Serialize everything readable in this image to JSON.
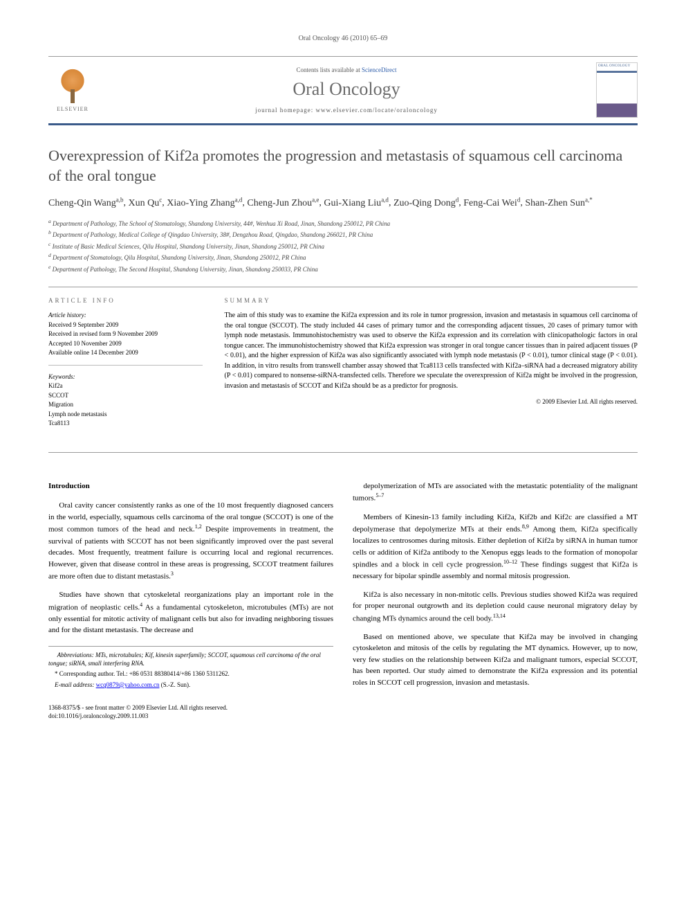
{
  "runningHead": "Oral Oncology 46 (2010) 65–69",
  "masthead": {
    "publisher": "ELSEVIER",
    "contentsPrefix": "Contents lists available at ",
    "contentsLink": "ScienceDirect",
    "journalName": "Oral Oncology",
    "homepageLabel": "journal homepage: www.elsevier.com/locate/oraloncology",
    "coverLabel": "ORAL ONCOLOGY"
  },
  "title": "Overexpression of Kif2a promotes the progression and metastasis of squamous cell carcinoma of the oral tongue",
  "authors": [
    {
      "name": "Cheng-Qin Wang",
      "aff": "a,b"
    },
    {
      "name": "Xun Qu",
      "aff": "c"
    },
    {
      "name": "Xiao-Ying Zhang",
      "aff": "a,d"
    },
    {
      "name": "Cheng-Jun Zhou",
      "aff": "a,e"
    },
    {
      "name": "Gui-Xiang Liu",
      "aff": "a,d"
    },
    {
      "name": "Zuo-Qing Dong",
      "aff": "d"
    },
    {
      "name": "Feng-Cai Wei",
      "aff": "d"
    },
    {
      "name": "Shan-Zhen Sun",
      "aff": "a,*"
    }
  ],
  "affiliations": [
    {
      "key": "a",
      "text": "Department of Pathology, The School of Stomatology, Shandong University, 44#, Wenhua Xi Road, Jinan, Shandong 250012, PR China"
    },
    {
      "key": "b",
      "text": "Department of Pathology, Medical College of Qingdao University, 38#, Dengzhou Road, Qingdao, Shandong 266021, PR China"
    },
    {
      "key": "c",
      "text": "Institute of Basic Medical Sciences, Qilu Hospital, Shandong University, Jinan, Shandong 250012, PR China"
    },
    {
      "key": "d",
      "text": "Department of Stomatology, Qilu Hospital, Shandong University, Jinan, Shandong 250012, PR China"
    },
    {
      "key": "e",
      "text": "Department of Pathology, The Second Hospital, Shandong University, Jinan, Shandong 250033, PR China"
    }
  ],
  "articleInfo": {
    "label": "ARTICLE INFO",
    "historyHead": "Article history:",
    "history": [
      "Received 9 September 2009",
      "Received in revised form 9 November 2009",
      "Accepted 10 November 2009",
      "Available online 14 December 2009"
    ],
    "keywordsHead": "Keywords:",
    "keywords": [
      "Kif2a",
      "SCCOT",
      "Migration",
      "Lymph node metastasis",
      "Tca8113"
    ]
  },
  "summary": {
    "label": "SUMMARY",
    "text": "The aim of this study was to examine the Kif2a expression and its role in tumor progression, invasion and metastasis in squamous cell carcinoma of the oral tongue (SCCOT). The study included 44 cases of primary tumor and the corresponding adjacent tissues, 20 cases of primary tumor with lymph node metastasis. Immunohistochemistry was used to observe the Kif2a expression and its correlation with clinicopathologic factors in oral tongue cancer. The immunohistochemistry showed that Kif2a expression was stronger in oral tongue cancer tissues than in paired adjacent tissues (P < 0.01), and the higher expression of Kif2a was also significantly associated with lymph node metastasis (P < 0.01), tumor clinical stage (P < 0.01). In addition, in vitro results from transwell chamber assay showed that Tca8113 cells transfected with Kif2a–siRNA had a decreased migratory ability (P < 0.01) compared to nonsense-siRNA-transfected cells. Therefore we speculate the overexpression of Kif2a might be involved in the progression, invasion and metastasis of SCCOT and Kif2a should be as a predictor for prognosis.",
    "copyright": "© 2009 Elsevier Ltd. All rights reserved."
  },
  "body": {
    "introHeading": "Introduction",
    "leftParas": [
      "Oral cavity cancer consistently ranks as one of the 10 most frequently diagnosed cancers in the world, especially, squamous cells carcinoma of the oral tongue (SCCOT) is one of the most common tumors of the head and neck.1,2 Despite improvements in treatment, the survival of patients with SCCOT has not been significantly improved over the past several decades. Most frequently, treatment failure is occurring local and regional recurrences. However, given that disease control in these areas is progressing, SCCOT treatment failures are more often due to distant metastasis.3",
      "Studies have shown that cytoskeletal reorganizations play an important role in the migration of neoplastic cells.4 As a fundamental cytoskeleton, microtubules (MTs) are not only essential for mitotic activity of malignant cells but also for invading neighboring tissues and for the distant metastasis. The decrease and"
    ],
    "rightParas": [
      "depolymerization of MTs are associated with the metastatic potentiality of the malignant tumors.5–7",
      "Members of Kinesin-13 family including Kif2a, Kif2b and Kif2c are classified a MT depolymerase that depolymerize MTs at their ends.8,9 Among them, Kif2a specifically localizes to centrosomes during mitosis. Either depletion of Kif2a by siRNA in human tumor cells or addition of Kif2a antibody to the Xenopus eggs leads to the formation of monopolar spindles and a block in cell cycle progression.10–12 These findings suggest that Kif2a is necessary for bipolar spindle assembly and normal mitosis progression.",
      "Kif2a is also necessary in non-mitotic cells. Previous studies showed Kif2a was required for proper neuronal outgrowth and its depletion could cause neuronal migratory delay by changing MTs dynamics around the cell body.13,14",
      "Based on mentioned above, we speculate that Kif2a may be involved in changing cytoskeleton and mitosis of the cells by regulating the MT dynamics. However, up to now, very few studies on the relationship between Kif2a and malignant tumors, especial SCCOT, has been reported. Our study aimed to demonstrate the Kif2a expression and its potential roles in SCCOT cell progression, invasion and metastasis."
    ]
  },
  "footnotes": {
    "abbrev": "Abbreviations: MTs, microtubules; Kif, kinesin superfamily; SCCOT, squamous cell carcinoma of the oral tongue; siRNA, small interfering RNA.",
    "corrLabel": "* Corresponding author. Tel.: +86 0531 88380414/+86 1360 5311262.",
    "emailLabel": "E-mail address: ",
    "email": "wcq0879@yahoo.com.cn",
    "emailSuffix": " (S.-Z. Sun)."
  },
  "footer": {
    "line1": "1368-8375/$ - see front matter © 2009 Elsevier Ltd. All rights reserved.",
    "line2": "doi:10.1016/j.oraloncology.2009.11.003"
  },
  "colors": {
    "rule": "#3a5a8a",
    "link": "#2a5aa8",
    "journalGray": "#6a6a6a"
  }
}
